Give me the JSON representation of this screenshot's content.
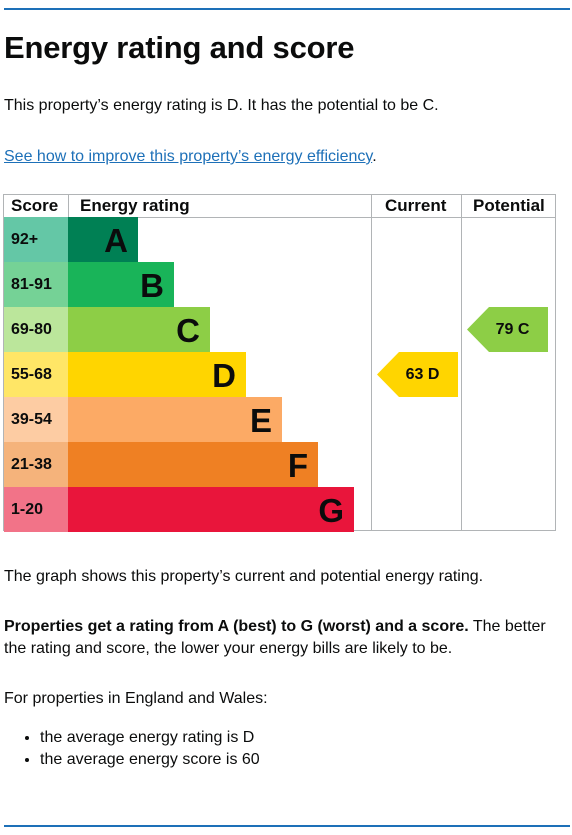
{
  "title": "Energy rating and score",
  "summary": "This property’s energy rating is D. It has the potential to be C.",
  "improve_link": "See how to improve this property’s energy efficiency",
  "improve_link_suffix": ".",
  "chart_data": {
    "type": "table",
    "headers": {
      "score": "Score",
      "rating": "Energy rating",
      "current": "Current",
      "potential": "Potential"
    },
    "bands": [
      {
        "score": "92+",
        "letter": "A",
        "color": "#008054",
        "score_bg": "#64c7a6"
      },
      {
        "score": "81-91",
        "letter": "B",
        "color": "#19b459",
        "score_bg": "#75d296"
      },
      {
        "score": "69-80",
        "letter": "C",
        "color": "#8dce46",
        "score_bg": "#bbe69b"
      },
      {
        "score": "55-68",
        "letter": "D",
        "color": "#ffd500",
        "score_bg": "#ffe666"
      },
      {
        "score": "39-54",
        "letter": "E",
        "color": "#fcaa65",
        "score_bg": "#fdcca3"
      },
      {
        "score": "21-38",
        "letter": "F",
        "color": "#ef8023",
        "score_bg": "#f5b37b"
      },
      {
        "score": "1-20",
        "letter": "G",
        "color": "#e9153b",
        "score_bg": "#f27388"
      }
    ],
    "current": {
      "label": "63  D",
      "score": 63,
      "band": "D",
      "color": "#ffd500"
    },
    "potential": {
      "label": "79  C",
      "score": 79,
      "band": "C",
      "color": "#8dce46"
    }
  },
  "graph_note": "The graph shows this property’s current and potential energy rating.",
  "rating_bold": "Properties get a rating from A (best) to G (worst) and a score.",
  "rating_rest": " The better the rating and score, the lower your energy bills are likely to be.",
  "averages_intro": "For properties in England and Wales:",
  "averages": [
    "the average energy rating is D",
    "the average energy score is 60"
  ]
}
